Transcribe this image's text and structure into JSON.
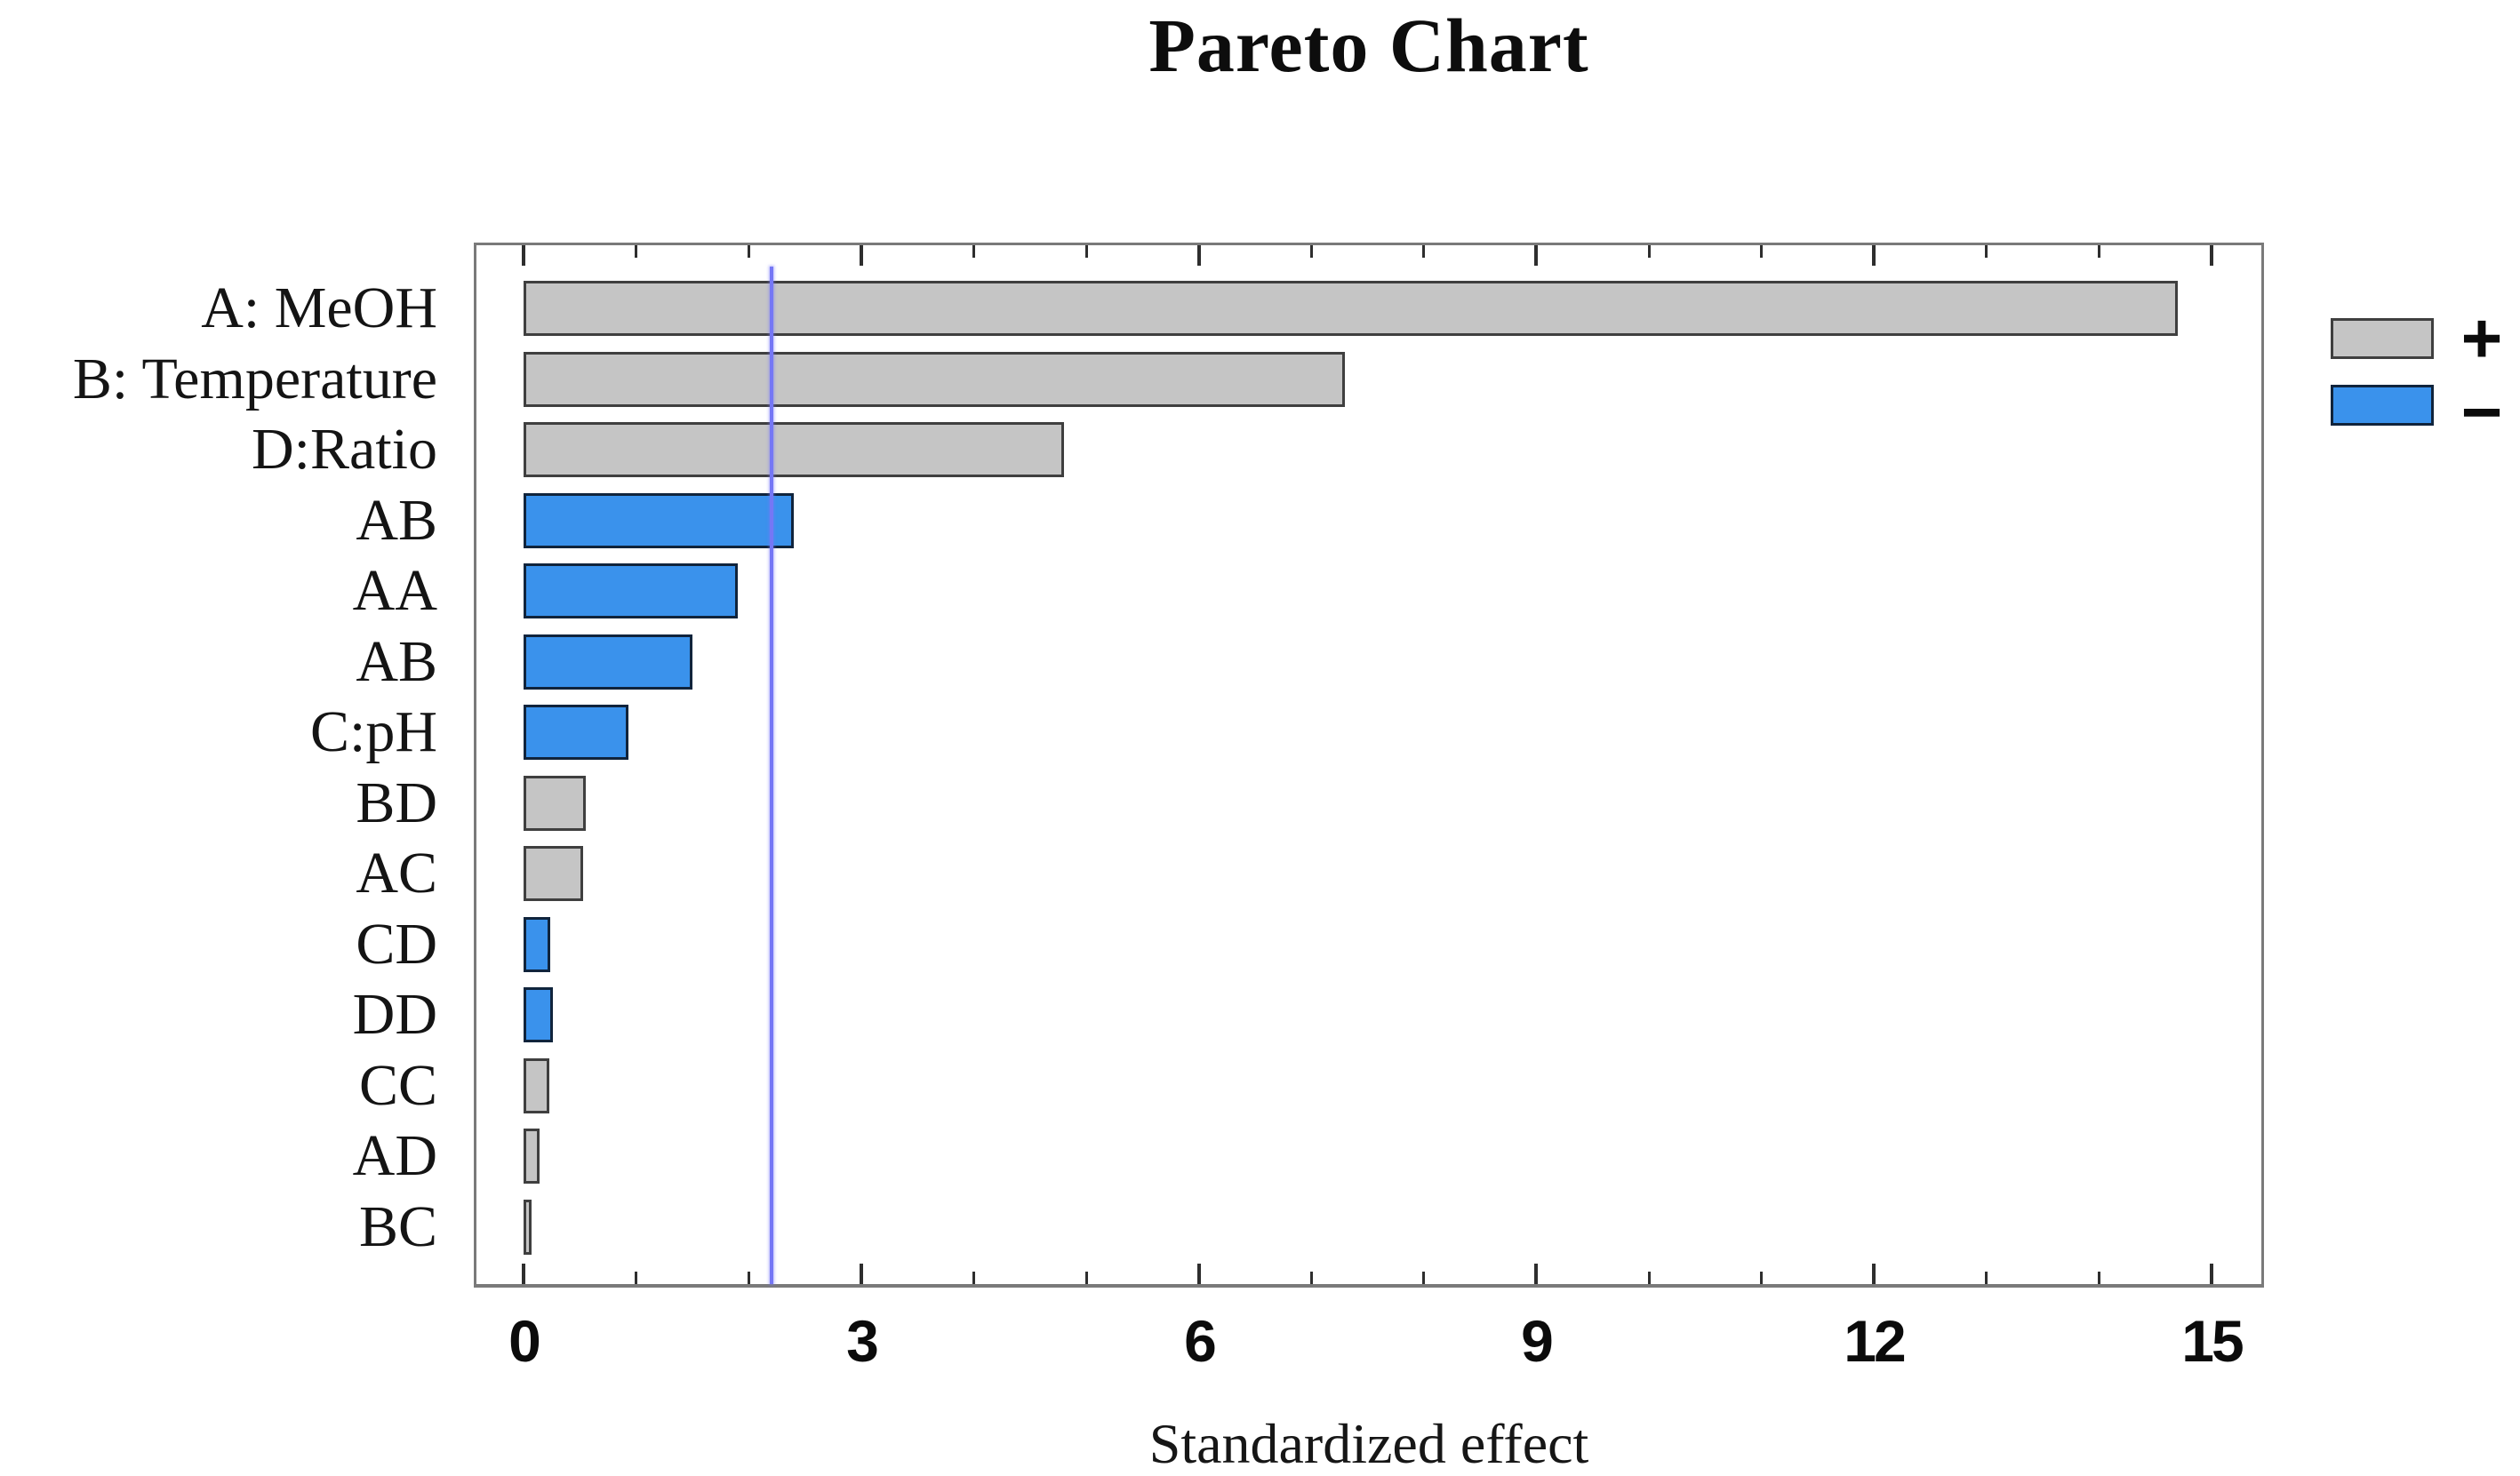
{
  "title": "Pareto Chart",
  "x_axis": {
    "label": "Standardized effect",
    "tick_values": [
      0,
      3,
      6,
      9,
      12,
      15
    ],
    "minor_tick_step": 1,
    "range": [
      0,
      15.4
    ]
  },
  "legend": {
    "positive_label": "+",
    "negative_label": "−"
  },
  "reference_line": {
    "value": 2.2
  },
  "colors": {
    "positive_fill": "#c5c5c5",
    "positive_border": "#3f3f3f",
    "negative_fill": "#3a92ec",
    "negative_border": "#10243c",
    "frame": "#7a7a7a",
    "tick": "#2e2e2e",
    "reference_line": "#7577f5",
    "text": "#111111"
  },
  "chart_data": {
    "type": "bar",
    "orientation": "horizontal",
    "title": "Pareto Chart",
    "xlabel": "Standardized effect",
    "xlim": [
      0,
      15.4
    ],
    "x_ticks": [
      0,
      3,
      6,
      9,
      12,
      15
    ],
    "grid": false,
    "legend_position": "right-outside",
    "categories": [
      "A: MeOH",
      "B: Temperature",
      "D:Ratio",
      "AB",
      "AA",
      "AB",
      "C:pH",
      "BD",
      "AC",
      "CD",
      "DD",
      "CC",
      "AD",
      "BC"
    ],
    "series": [
      {
        "name": "Standardized effect",
        "values": [
          14.7,
          7.3,
          4.8,
          2.4,
          1.9,
          1.5,
          0.93,
          0.55,
          0.53,
          0.24,
          0.26,
          0.23,
          0.14,
          0.07
        ]
      }
    ],
    "bar_signs": [
      "+",
      "+",
      "+",
      "−",
      "−",
      "−",
      "−",
      "+",
      "+",
      "−",
      "−",
      "+",
      "+",
      "+"
    ],
    "reference_line": 2.2,
    "annotations": []
  }
}
